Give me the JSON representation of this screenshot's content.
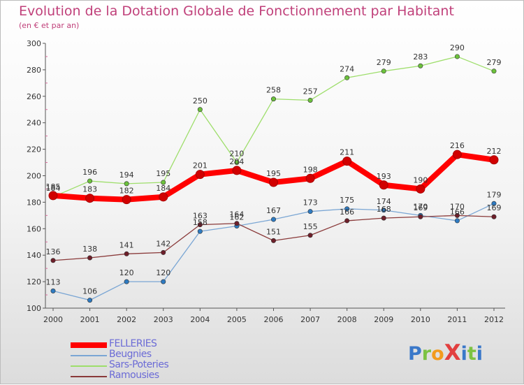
{
  "header": {
    "title": "Evolution de la Dotation Globale de Fonctionnement par Habitant",
    "subtitle": "(en € et par an)"
  },
  "logo": {
    "text": "ProXiti",
    "letters": [
      "P",
      "r",
      "o",
      "X",
      "i",
      "t",
      "i"
    ],
    "colors": [
      "#3a78c9",
      "#7cc242",
      "#f39b1d",
      "#e23f3f",
      "#3a78c9",
      "#7cc242",
      "#3a78c9"
    ]
  },
  "chart_data": {
    "type": "line",
    "x": [
      "2000",
      "2001",
      "2002",
      "2003",
      "2004",
      "2005",
      "2006",
      "2007",
      "2008",
      "2009",
      "2010",
      "2011",
      "2012"
    ],
    "ylim": [
      100,
      300
    ],
    "yticks": [
      100,
      120,
      140,
      160,
      180,
      200,
      220,
      240,
      260,
      280,
      300
    ],
    "grid": false,
    "legend_position": "bottom-left",
    "series": [
      {
        "name": "FELLERIES",
        "values": [
          185,
          183,
          182,
          184,
          201,
          204,
          195,
          198,
          211,
          193,
          190,
          216,
          212
        ],
        "color": "#ff0000",
        "marker": "#d10000"
      },
      {
        "name": "Beugnies",
        "values": [
          113,
          106,
          120,
          120,
          158,
          162,
          167,
          173,
          175,
          174,
          170,
          166,
          179
        ],
        "color": "#7aa6d4",
        "marker": "#2e7bc2"
      },
      {
        "name": "Sars-Poteries",
        "values": [
          184,
          196,
          194,
          195,
          250,
          210,
          258,
          257,
          274,
          279,
          283,
          290,
          279
        ],
        "color": "#9ede6b",
        "marker": "#6cc23c"
      },
      {
        "name": "Ramousies",
        "values": [
          136,
          138,
          141,
          142,
          163,
          164,
          151,
          155,
          166,
          168,
          169,
          170,
          169
        ],
        "color": "#8a3a3a",
        "marker": "#6e1f2a"
      }
    ]
  }
}
